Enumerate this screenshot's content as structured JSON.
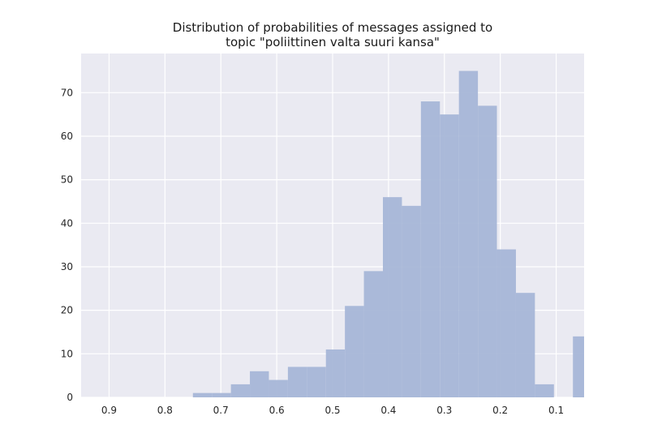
{
  "chart_data": {
    "type": "bar",
    "title_lines": [
      "Distribution of probabilities of messages assigned to",
      "topic \"poliittinen valta suuri kansa\""
    ],
    "xlabel": "",
    "ylabel": "",
    "x_axis_reversed": true,
    "xlim": [
      0.95,
      0.05
    ],
    "ylim": [
      0,
      79
    ],
    "x_ticks": [
      0.9,
      0.8,
      0.7,
      0.6,
      0.5,
      0.4,
      0.3,
      0.2,
      0.1
    ],
    "x_tick_labels": [
      "0.9",
      "0.8",
      "0.7",
      "0.6",
      "0.5",
      "0.4",
      "0.3",
      "0.2",
      "0.1"
    ],
    "y_ticks": [
      0,
      10,
      20,
      30,
      40,
      50,
      60,
      70
    ],
    "y_tick_labels": [
      "0",
      "10",
      "20",
      "30",
      "40",
      "50",
      "60",
      "70"
    ],
    "grid": true,
    "bar_color": "#a6b6d7",
    "plot_background": "#eaeaf2",
    "grid_color": "#ffffff",
    "bin_width": 0.034,
    "bins": [
      {
        "x_start": 0.75,
        "count": 1
      },
      {
        "x_start": 0.716,
        "count": 1
      },
      {
        "x_start": 0.682,
        "count": 3
      },
      {
        "x_start": 0.648,
        "count": 6
      },
      {
        "x_start": 0.614,
        "count": 4
      },
      {
        "x_start": 0.58,
        "count": 7
      },
      {
        "x_start": 0.546,
        "count": 7
      },
      {
        "x_start": 0.512,
        "count": 11
      },
      {
        "x_start": 0.478,
        "count": 21
      },
      {
        "x_start": 0.444,
        "count": 29
      },
      {
        "x_start": 0.41,
        "count": 46
      },
      {
        "x_start": 0.376,
        "count": 44
      },
      {
        "x_start": 0.342,
        "count": 68
      },
      {
        "x_start": 0.308,
        "count": 65
      },
      {
        "x_start": 0.274,
        "count": 75
      },
      {
        "x_start": 0.24,
        "count": 67
      },
      {
        "x_start": 0.206,
        "count": 34
      },
      {
        "x_start": 0.172,
        "count": 24
      },
      {
        "x_start": 0.138,
        "count": 3
      },
      {
        "x_start": 0.07,
        "count": 14
      }
    ]
  }
}
